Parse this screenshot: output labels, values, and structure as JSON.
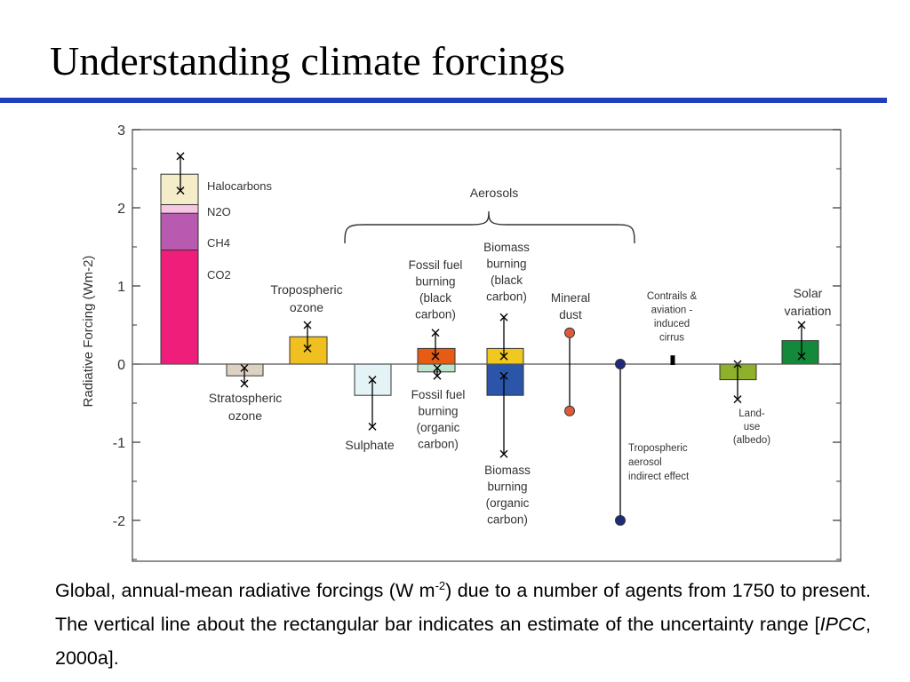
{
  "slide": {
    "title": "Understanding climate forcings",
    "accent_color": "#1f3fbf"
  },
  "caption": {
    "text_1": "Global, annual-mean radiative forcings (W m",
    "superscript": "-2",
    "text_2": ") due to a number of agents from 1750 to present. The vertical line about the rectangular bar indicates an estimate of the uncertainty range [",
    "italic": "IPCC",
    "text_3": ", 2000a]."
  },
  "chart_data": {
    "type": "bar",
    "ylabel": "Radiative Forcing  (Wm-2)",
    "ylim": [
      -2.5,
      3
    ],
    "yticks": [
      3,
      2,
      1,
      0,
      -1,
      -2
    ],
    "ytick_labels": [
      "3",
      "2",
      "1",
      "0",
      "-1",
      "-2"
    ],
    "grid": false,
    "bars": [
      {
        "id": "greenhouse",
        "segments": [
          {
            "name": "CO2",
            "from": 0,
            "to": 1.46,
            "color": "#ee1e7a"
          },
          {
            "name": "CH4",
            "from": 1.46,
            "to": 1.93,
            "color": "#b85ab0"
          },
          {
            "name": "N2O",
            "from": 1.93,
            "to": 2.04,
            "color": "#f7c7e2"
          },
          {
            "name": "Halocarbons",
            "from": 2.04,
            "to": 2.43,
            "color": "#f5ecca"
          }
        ],
        "range": [
          2.22,
          2.66
        ]
      },
      {
        "id": "strat-ozone",
        "from": -0.15,
        "to": 0,
        "color": "#ddd2c2",
        "range": [
          -0.25,
          -0.05
        ]
      },
      {
        "id": "trop-ozone",
        "from": 0,
        "to": 0.35,
        "color": "#f0c020",
        "range": [
          0.2,
          0.5
        ]
      },
      {
        "id": "sulphate",
        "from": -0.4,
        "to": 0,
        "color": "#e4f3f6",
        "range": [
          -0.8,
          -0.2
        ]
      },
      {
        "id": "ff-black",
        "from": 0,
        "to": 0.2,
        "color": "#e65c12",
        "range": [
          0.1,
          0.4
        ]
      },
      {
        "id": "ff-organic",
        "from": -0.1,
        "to": 0,
        "color": "#bfe6cc",
        "range": [
          -0.05,
          -0.15
        ]
      },
      {
        "id": "bb-black",
        "from": 0,
        "to": 0.2,
        "color": "#f0c820",
        "range": [
          0.1,
          0.6
        ]
      },
      {
        "id": "bb-organic",
        "from": -0.4,
        "to": 0,
        "color": "#2a55a8",
        "range": [
          -0.15,
          -1.15
        ]
      },
      {
        "id": "land-use",
        "from": -0.2,
        "to": 0,
        "color": "#8fb02a",
        "range": [
          0,
          -0.45
        ]
      },
      {
        "id": "solar",
        "from": 0,
        "to": 0.3,
        "color": "#138a3a",
        "range": [
          0.1,
          0.5
        ]
      }
    ],
    "lines": [
      {
        "id": "mineral-dust",
        "range": [
          0.4,
          -0.6
        ],
        "color": "#e05a3a"
      },
      {
        "id": "trop-aerosol-indirect",
        "range": [
          0,
          -2
        ],
        "color": "#1e2b7a"
      },
      {
        "id": "contrails",
        "range": [
          0.1,
          0
        ],
        "color": "#000000"
      }
    ],
    "annotations": {
      "halocarbons": "Halocarbons",
      "n2o": "N2O",
      "ch4": "CH4",
      "co2": "CO2",
      "trop_ozone": [
        "Tropospheric",
        "ozone"
      ],
      "strat_ozone": [
        "Stratospheric",
        "ozone"
      ],
      "aerosols": "Aerosols",
      "ff_black": [
        "Fossil fuel",
        "burning",
        "(black",
        "carbon)"
      ],
      "bb_black": [
        "Biomass",
        "burning",
        "(black",
        "carbon)"
      ],
      "mineral_dust": [
        "Mineral",
        "dust"
      ],
      "contrails": [
        "Contrails &",
        "aviation -",
        "induced",
        "cirrus"
      ],
      "solar": [
        "Solar",
        "variation"
      ],
      "sulphate": "Sulphate",
      "ff_organic": [
        "Fossil fuel",
        "burning",
        "(organic",
        "carbon)"
      ],
      "bb_organic": [
        "Biomass",
        "burning",
        "(organic",
        "carbon)"
      ],
      "trop_aerosol": [
        "Tropospheric",
        "aerosol",
        "indirect effect"
      ],
      "land_use": [
        "Land-",
        "use",
        "(albedo)"
      ]
    }
  }
}
